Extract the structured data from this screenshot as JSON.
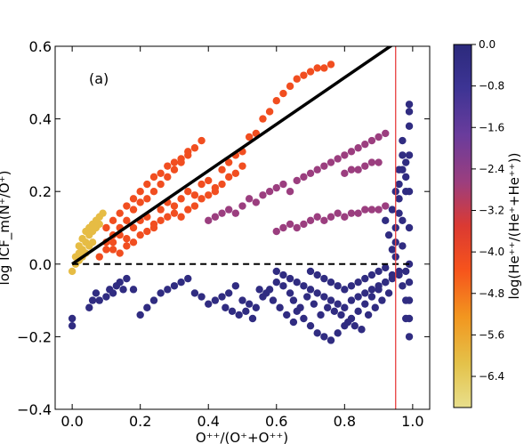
{
  "chart_data": {
    "type": "scatter",
    "panel_label": "(a)",
    "xlabel": "O⁺⁺/(O⁺+O⁺⁺)",
    "ylabel": "log ICF_m(N⁺/O⁺)",
    "xlim": [
      -0.05,
      1.05
    ],
    "ylim": [
      -0.4,
      0.6
    ],
    "x_ticks": [
      "0.0",
      "0.2",
      "0.4",
      "0.6",
      "0.8",
      "1.0"
    ],
    "y_ticks": [
      "−0.4",
      "−0.2",
      "0.0",
      "0.2",
      "0.4",
      "0.6"
    ],
    "colorbar": {
      "label": "log(He⁺⁺/(He⁺+He⁺⁺))",
      "range": [
        -7.0,
        0.0
      ],
      "ticks": [
        "0.0",
        "−0.8",
        "−1.6",
        "−2.4",
        "−3.2",
        "−4.0",
        "−4.8",
        "−5.6",
        "−6.4"
      ],
      "colors": [
        "#e8df8c",
        "#e4c24a",
        "#f2961f",
        "#f6531c",
        "#db3a32",
        "#9c3e7e",
        "#6a3c9c",
        "#3d3494",
        "#2c2a7c"
      ]
    },
    "reference_lines": [
      {
        "type": "solid",
        "color": "#000000",
        "points": [
          [
            0.0,
            0.0
          ],
          [
            0.95,
            0.61
          ]
        ]
      },
      {
        "type": "dashed",
        "color": "#000000",
        "points": [
          [
            0.0,
            0.0
          ],
          [
            1.0,
            0.0
          ]
        ]
      },
      {
        "type": "vertical",
        "color": "#e84040",
        "x": 0.95
      }
    ],
    "series": [
      {
        "points": [
          [
            0.0,
            -0.02
          ],
          [
            0.01,
            0.02
          ],
          [
            0.02,
            0.05
          ],
          [
            0.03,
            0.07
          ],
          [
            0.04,
            0.09
          ],
          [
            0.05,
            0.1
          ],
          [
            0.06,
            0.11
          ],
          [
            0.07,
            0.12
          ],
          [
            0.08,
            0.13
          ],
          [
            0.09,
            0.14
          ],
          [
            0.02,
            0.03
          ],
          [
            0.03,
            0.04
          ],
          [
            0.04,
            0.06
          ],
          [
            0.05,
            0.08
          ],
          [
            0.06,
            0.09
          ],
          [
            0.07,
            0.1
          ],
          [
            0.08,
            0.11
          ],
          [
            0.01,
            0.0
          ],
          [
            0.02,
            0.01
          ],
          [
            0.03,
            0.02
          ],
          [
            0.04,
            0.03
          ],
          [
            0.05,
            0.05
          ],
          [
            0.06,
            0.06
          ]
        ],
        "c": -6.0
      },
      {
        "points": [
          [
            0.08,
            0.02
          ],
          [
            0.1,
            0.04
          ],
          [
            0.12,
            0.06
          ],
          [
            0.14,
            0.08
          ],
          [
            0.16,
            0.07
          ],
          [
            0.18,
            0.1
          ],
          [
            0.2,
            0.12
          ],
          [
            0.22,
            0.13
          ],
          [
            0.24,
            0.11
          ],
          [
            0.26,
            0.15
          ],
          [
            0.28,
            0.17
          ],
          [
            0.3,
            0.16
          ],
          [
            0.32,
            0.18
          ],
          [
            0.34,
            0.2
          ],
          [
            0.36,
            0.19
          ],
          [
            0.38,
            0.22
          ],
          [
            0.4,
            0.23
          ],
          [
            0.42,
            0.21
          ],
          [
            0.44,
            0.26
          ],
          [
            0.46,
            0.28
          ],
          [
            0.48,
            0.3
          ],
          [
            0.5,
            0.31
          ],
          [
            0.52,
            0.35
          ],
          [
            0.54,
            0.36
          ],
          [
            0.56,
            0.4
          ],
          [
            0.58,
            0.42
          ],
          [
            0.6,
            0.45
          ],
          [
            0.62,
            0.47
          ],
          [
            0.64,
            0.49
          ],
          [
            0.66,
            0.51
          ],
          [
            0.68,
            0.52
          ],
          [
            0.7,
            0.53
          ],
          [
            0.72,
            0.54
          ],
          [
            0.74,
            0.54
          ],
          [
            0.76,
            0.55
          ],
          [
            0.12,
            0.08
          ],
          [
            0.14,
            0.1
          ],
          [
            0.16,
            0.12
          ],
          [
            0.18,
            0.15
          ],
          [
            0.2,
            0.17
          ],
          [
            0.22,
            0.18
          ],
          [
            0.24,
            0.2
          ],
          [
            0.26,
            0.22
          ],
          [
            0.28,
            0.24
          ],
          [
            0.3,
            0.26
          ],
          [
            0.32,
            0.28
          ],
          [
            0.34,
            0.3
          ],
          [
            0.36,
            0.32
          ],
          [
            0.38,
            0.34
          ],
          [
            0.1,
            0.06
          ],
          [
            0.12,
            0.04
          ],
          [
            0.14,
            0.03
          ],
          [
            0.16,
            0.05
          ],
          [
            0.18,
            0.06
          ],
          [
            0.2,
            0.08
          ],
          [
            0.22,
            0.09
          ],
          [
            0.24,
            0.1
          ],
          [
            0.26,
            0.12
          ],
          [
            0.28,
            0.13
          ],
          [
            0.3,
            0.14
          ],
          [
            0.32,
            0.13
          ],
          [
            0.34,
            0.15
          ],
          [
            0.36,
            0.16
          ],
          [
            0.38,
            0.18
          ],
          [
            0.4,
            0.19
          ],
          [
            0.42,
            0.2
          ],
          [
            0.44,
            0.22
          ],
          [
            0.46,
            0.24
          ],
          [
            0.48,
            0.25
          ],
          [
            0.5,
            0.27
          ],
          [
            0.1,
            0.1
          ],
          [
            0.12,
            0.12
          ],
          [
            0.14,
            0.14
          ],
          [
            0.16,
            0.16
          ],
          [
            0.18,
            0.18
          ],
          [
            0.2,
            0.2
          ],
          [
            0.22,
            0.22
          ],
          [
            0.24,
            0.24
          ],
          [
            0.26,
            0.25
          ],
          [
            0.28,
            0.27
          ],
          [
            0.3,
            0.28
          ],
          [
            0.32,
            0.29
          ],
          [
            0.34,
            0.31
          ]
        ],
        "c": -4.2
      },
      {
        "points": [
          [
            0.4,
            0.12
          ],
          [
            0.42,
            0.13
          ],
          [
            0.44,
            0.14
          ],
          [
            0.46,
            0.15
          ],
          [
            0.48,
            0.14
          ],
          [
            0.5,
            0.16
          ],
          [
            0.52,
            0.18
          ],
          [
            0.54,
            0.17
          ],
          [
            0.56,
            0.19
          ],
          [
            0.58,
            0.2
          ],
          [
            0.6,
            0.21
          ],
          [
            0.62,
            0.22
          ],
          [
            0.64,
            0.2
          ],
          [
            0.66,
            0.23
          ],
          [
            0.68,
            0.24
          ],
          [
            0.7,
            0.25
          ],
          [
            0.72,
            0.26
          ],
          [
            0.74,
            0.27
          ],
          [
            0.76,
            0.28
          ],
          [
            0.78,
            0.29
          ],
          [
            0.8,
            0.3
          ],
          [
            0.82,
            0.31
          ],
          [
            0.84,
            0.32
          ],
          [
            0.86,
            0.33
          ],
          [
            0.88,
            0.34
          ],
          [
            0.9,
            0.35
          ],
          [
            0.92,
            0.36
          ],
          [
            0.6,
            0.09
          ],
          [
            0.62,
            0.1
          ],
          [
            0.64,
            0.11
          ],
          [
            0.66,
            0.1
          ],
          [
            0.68,
            0.11
          ],
          [
            0.7,
            0.12
          ],
          [
            0.72,
            0.13
          ],
          [
            0.74,
            0.12
          ],
          [
            0.76,
            0.13
          ],
          [
            0.78,
            0.14
          ],
          [
            0.8,
            0.13
          ],
          [
            0.82,
            0.14
          ],
          [
            0.84,
            0.14
          ],
          [
            0.86,
            0.15
          ],
          [
            0.88,
            0.15
          ],
          [
            0.9,
            0.15
          ],
          [
            0.92,
            0.16
          ],
          [
            0.8,
            0.25
          ],
          [
            0.82,
            0.26
          ],
          [
            0.84,
            0.26
          ],
          [
            0.86,
            0.27
          ],
          [
            0.88,
            0.28
          ],
          [
            0.9,
            0.28
          ]
        ],
        "c": -2.6
      },
      {
        "points": [
          [
            0.0,
            -0.15
          ],
          [
            0.0,
            -0.17
          ],
          [
            0.05,
            -0.12
          ],
          [
            0.06,
            -0.1
          ],
          [
            0.07,
            -0.08
          ],
          [
            0.08,
            -0.1
          ],
          [
            0.1,
            -0.09
          ],
          [
            0.11,
            -0.07
          ],
          [
            0.12,
            -0.08
          ],
          [
            0.13,
            -0.06
          ],
          [
            0.14,
            -0.05
          ],
          [
            0.15,
            -0.07
          ],
          [
            0.16,
            -0.04
          ],
          [
            0.18,
            -0.07
          ],
          [
            0.2,
            -0.14
          ],
          [
            0.22,
            -0.12
          ],
          [
            0.24,
            -0.1
          ],
          [
            0.26,
            -0.08
          ],
          [
            0.28,
            -0.07
          ],
          [
            0.3,
            -0.06
          ],
          [
            0.32,
            -0.05
          ],
          [
            0.34,
            -0.04
          ],
          [
            0.36,
            -0.08
          ],
          [
            0.38,
            -0.09
          ],
          [
            0.4,
            -0.11
          ],
          [
            0.42,
            -0.1
          ],
          [
            0.44,
            -0.09
          ],
          [
            0.46,
            -0.08
          ],
          [
            0.48,
            -0.06
          ],
          [
            0.5,
            -0.1
          ],
          [
            0.52,
            -0.11
          ],
          [
            0.54,
            -0.12
          ],
          [
            0.56,
            -0.09
          ],
          [
            0.58,
            -0.07
          ],
          [
            0.6,
            -0.05
          ],
          [
            0.62,
            -0.06
          ],
          [
            0.64,
            -0.08
          ],
          [
            0.66,
            -0.13
          ],
          [
            0.68,
            -0.15
          ],
          [
            0.7,
            -0.17
          ],
          [
            0.72,
            -0.19
          ],
          [
            0.74,
            -0.2
          ],
          [
            0.76,
            -0.21
          ],
          [
            0.78,
            -0.19
          ],
          [
            0.8,
            -0.17
          ],
          [
            0.82,
            -0.15
          ],
          [
            0.84,
            -0.13
          ],
          [
            0.86,
            -0.11
          ],
          [
            0.88,
            -0.09
          ],
          [
            0.9,
            -0.07
          ],
          [
            0.92,
            -0.05
          ],
          [
            0.94,
            -0.03
          ],
          [
            0.96,
            -0.02
          ],
          [
            0.6,
            -0.02
          ],
          [
            0.62,
            -0.03
          ],
          [
            0.64,
            -0.04
          ],
          [
            0.66,
            -0.05
          ],
          [
            0.68,
            -0.06
          ],
          [
            0.7,
            -0.07
          ],
          [
            0.72,
            -0.08
          ],
          [
            0.74,
            -0.09
          ],
          [
            0.76,
            -0.1
          ],
          [
            0.78,
            -0.11
          ],
          [
            0.8,
            -0.12
          ],
          [
            0.82,
            -0.1
          ],
          [
            0.84,
            -0.09
          ],
          [
            0.86,
            -0.08
          ],
          [
            0.88,
            -0.07
          ],
          [
            0.9,
            -0.06
          ],
          [
            0.92,
            -0.05
          ],
          [
            0.94,
            -0.04
          ],
          [
            0.96,
            -0.03
          ],
          [
            0.7,
            -0.02
          ],
          [
            0.72,
            -0.03
          ],
          [
            0.74,
            -0.04
          ],
          [
            0.76,
            -0.05
          ],
          [
            0.78,
            -0.06
          ],
          [
            0.8,
            -0.07
          ],
          [
            0.82,
            -0.06
          ],
          [
            0.84,
            -0.05
          ],
          [
            0.86,
            -0.04
          ],
          [
            0.88,
            -0.03
          ],
          [
            0.9,
            -0.02
          ],
          [
            0.92,
            -0.01
          ],
          [
            0.75,
            -0.12
          ],
          [
            0.77,
            -0.13
          ],
          [
            0.79,
            -0.14
          ],
          [
            0.81,
            -0.16
          ],
          [
            0.83,
            -0.17
          ],
          [
            0.85,
            -0.18
          ],
          [
            0.87,
            -0.14
          ],
          [
            0.89,
            -0.12
          ],
          [
            0.91,
            -0.1
          ],
          [
            0.93,
            -0.08
          ],
          [
            0.95,
            0.02
          ],
          [
            0.95,
            0.06
          ],
          [
            0.95,
            0.1
          ],
          [
            0.96,
            0.14
          ],
          [
            0.96,
            0.18
          ],
          [
            0.96,
            0.22
          ],
          [
            0.97,
            0.26
          ],
          [
            0.97,
            0.3
          ],
          [
            0.97,
            0.34
          ],
          [
            0.98,
            0.2
          ],
          [
            0.98,
            0.24
          ],
          [
            0.98,
            0.28
          ],
          [
            0.99,
            0.38
          ],
          [
            0.99,
            0.42
          ],
          [
            0.99,
            0.44
          ],
          [
            0.99,
            0.3
          ],
          [
            0.99,
            0.2
          ],
          [
            0.99,
            0.1
          ],
          [
            0.99,
            0.0
          ],
          [
            0.99,
            -0.05
          ],
          [
            0.99,
            -0.1
          ],
          [
            0.99,
            -0.15
          ],
          [
            0.99,
            -0.2
          ],
          [
            0.98,
            -0.1
          ],
          [
            0.98,
            -0.15
          ],
          [
            0.98,
            -0.02
          ],
          [
            0.97,
            -0.06
          ],
          [
            0.97,
            0.05
          ],
          [
            0.97,
            0.12
          ],
          [
            0.94,
            0.04
          ],
          [
            0.93,
            0.08
          ],
          [
            0.92,
            0.12
          ],
          [
            0.94,
            0.15
          ],
          [
            0.95,
            0.2
          ],
          [
            0.96,
            0.26
          ],
          [
            0.65,
            -0.1
          ],
          [
            0.67,
            -0.12
          ],
          [
            0.69,
            -0.09
          ],
          [
            0.71,
            -0.11
          ],
          [
            0.73,
            -0.14
          ],
          [
            0.55,
            -0.07
          ],
          [
            0.57,
            -0.08
          ],
          [
            0.59,
            -0.1
          ],
          [
            0.61,
            -0.12
          ],
          [
            0.63,
            -0.14
          ],
          [
            0.65,
            -0.16
          ],
          [
            0.45,
            -0.12
          ],
          [
            0.47,
            -0.13
          ],
          [
            0.49,
            -0.14
          ],
          [
            0.51,
            -0.13
          ],
          [
            0.53,
            -0.15
          ]
        ],
        "c": -0.2
      }
    ]
  }
}
